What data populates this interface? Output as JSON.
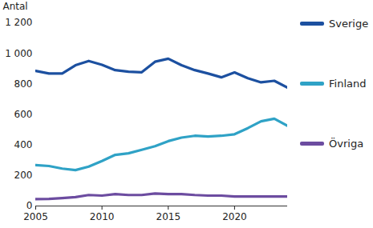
{
  "chart_data": {
    "type": "line",
    "y_label": "Antal",
    "x": [
      2005,
      2006,
      2007,
      2008,
      2009,
      2010,
      2011,
      2012,
      2013,
      2014,
      2015,
      2016,
      2017,
      2018,
      2019,
      2020,
      2021,
      2022,
      2023,
      2024
    ],
    "series": [
      {
        "name": "Sverige",
        "color": "#1c50a0",
        "values": [
          885,
          868,
          868,
          922,
          950,
          925,
          890,
          880,
          876,
          945,
          965,
          922,
          890,
          868,
          843,
          875,
          837,
          810,
          820,
          775
        ]
      },
      {
        "name": "Finland",
        "color": "#2fa2c6",
        "values": [
          268,
          262,
          245,
          235,
          258,
          295,
          335,
          345,
          368,
          392,
          425,
          448,
          460,
          455,
          460,
          470,
          510,
          555,
          572,
          525
        ]
      },
      {
        "name": "Övriga",
        "color": "#6c4ca0",
        "values": [
          45,
          47,
          52,
          58,
          72,
          68,
          78,
          72,
          72,
          82,
          78,
          78,
          72,
          68,
          68,
          62,
          62,
          62,
          62,
          62
        ]
      }
    ],
    "xlim": [
      2005,
      2024
    ],
    "xticks": [
      2005,
      2010,
      2015,
      2020
    ],
    "ylim": [
      0,
      1200
    ],
    "yticks": [
      0,
      200,
      400,
      600,
      800,
      {
        "value": 1000,
        "label": "1 000"
      },
      {
        "value": 1200,
        "label": "1 200"
      }
    ],
    "grid": false,
    "legend": "right"
  }
}
